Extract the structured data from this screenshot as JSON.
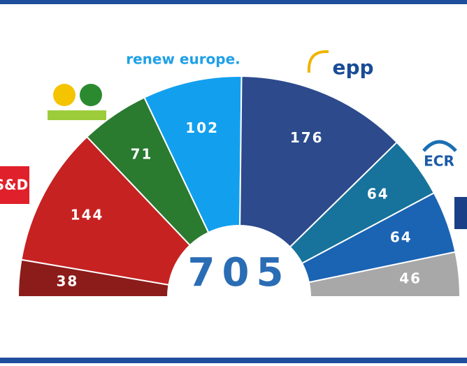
{
  "chart_data": {
    "type": "half-donut",
    "total": 705,
    "categories": [
      null,
      "S&D",
      null,
      "renew europe.",
      "epp",
      "ECR",
      null,
      null
    ],
    "values": [
      38,
      144,
      71,
      102,
      176,
      64,
      64,
      46
    ],
    "colors": [
      "#8b1c1a",
      "#c62222",
      "#2a7a30",
      "#12a0ee",
      "#2c4a8c",
      "#17739b",
      "#1b63b3",
      "#a8a8a8"
    ]
  }
}
